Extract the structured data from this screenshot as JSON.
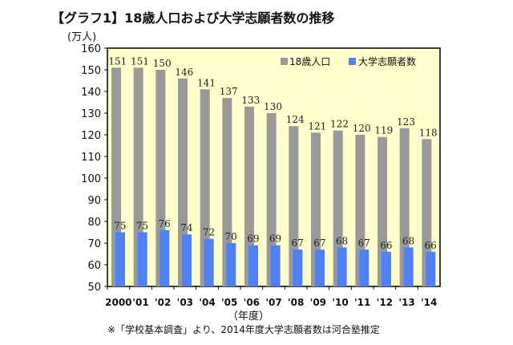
{
  "chart_data": {
    "type": "bar",
    "title": "【グラフ1】18歳人口および大学志願者数の推移",
    "ylabel": "(万人)",
    "xlabel": "（年度）",
    "footnote": "※「学校基本調査」より、2014年度大学志願者数は河合塾推定",
    "ylim": [
      50,
      160
    ],
    "yticks": [
      50,
      60,
      70,
      80,
      90,
      100,
      110,
      120,
      130,
      140,
      150,
      160
    ],
    "grid": false,
    "legend_position": "top-right",
    "plot_background": "#ffffcc",
    "categories": [
      "2000",
      "'01",
      "'02",
      "'03",
      "'04",
      "'05",
      "'06",
      "'07",
      "'08",
      "'09",
      "'10",
      "'11",
      "'12",
      "'13",
      "'14"
    ],
    "series": [
      {
        "name": "18歳人口",
        "color": "#999999",
        "values": [
          151,
          151,
          150,
          146,
          141,
          137,
          133,
          130,
          124,
          121,
          122,
          120,
          119,
          123,
          118
        ]
      },
      {
        "name": "大学志願者数",
        "color": "#4f81f5",
        "values": [
          75,
          75,
          76,
          74,
          72,
          70,
          69,
          69,
          67,
          67,
          68,
          67,
          66,
          68,
          66
        ]
      }
    ]
  }
}
